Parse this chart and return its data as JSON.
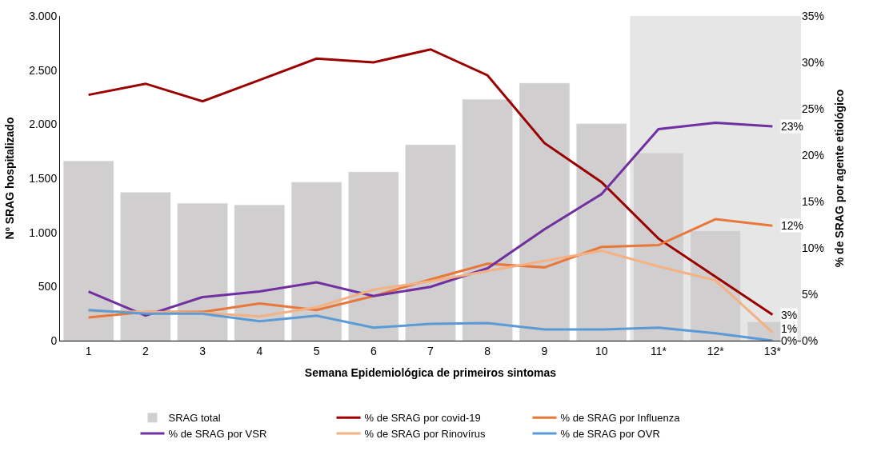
{
  "chart_data": {
    "type": "bar",
    "xlabel": "Semana Epidemiológica de primeiros sintomas",
    "ylabel": "Nº SRAG hospitalizado",
    "y2label": "% de SRAG por agente etiológico",
    "categories": [
      "1",
      "2",
      "3",
      "4",
      "5",
      "6",
      "7",
      "8",
      "9",
      "10",
      "11*",
      "12*",
      "13*"
    ],
    "series": [
      {
        "name": "SRAG total",
        "color": "#d0cecf",
        "values": [
          1660,
          1370,
          1270,
          1255,
          1465,
          1560,
          1810,
          2230,
          2380,
          2005,
          1735,
          1015,
          175
        ]
      },
      {
        "name": "% de SRAG por covid-19",
        "type": "line",
        "axis": "y2",
        "color": "#9b0000",
        "values": [
          26.5,
          27.7,
          25.8,
          28.1,
          30.4,
          30.0,
          31.4,
          28.6,
          21.3,
          17.1,
          11.0,
          6.9,
          2.8
        ],
        "value_labels": [
          null,
          null,
          null,
          null,
          null,
          null,
          null,
          null,
          null,
          null,
          null,
          null,
          "3%"
        ]
      },
      {
        "name": "% de SRAG por Influenza",
        "type": "line",
        "axis": "y2",
        "color": "#e8773a",
        "values": [
          2.5,
          3.1,
          3.1,
          4.0,
          3.3,
          4.8,
          6.6,
          8.3,
          7.9,
          10.1,
          10.3,
          13.1,
          12.4
        ],
        "value_labels": [
          null,
          null,
          null,
          null,
          null,
          null,
          null,
          null,
          null,
          null,
          null,
          null,
          "12%"
        ]
      },
      {
        "name": "% de SRAG por VSR",
        "type": "line",
        "axis": "y2",
        "color": "#7030a0",
        "values": [
          5.3,
          2.7,
          4.7,
          5.3,
          6.3,
          4.8,
          5.8,
          7.8,
          12.0,
          15.8,
          22.8,
          23.5,
          23.1
        ],
        "value_labels": [
          null,
          null,
          null,
          null,
          null,
          null,
          null,
          null,
          null,
          null,
          null,
          null,
          "23%"
        ]
      },
      {
        "name": "% de SRAG por Rinovírus",
        "type": "line",
        "axis": "y2",
        "color": "#f4b183",
        "values": [
          3.2,
          3.1,
          3.0,
          2.6,
          3.6,
          5.5,
          6.4,
          7.5,
          8.6,
          9.7,
          8.0,
          6.5,
          0.9
        ],
        "value_labels": [
          null,
          null,
          null,
          null,
          null,
          null,
          null,
          null,
          null,
          null,
          null,
          null,
          "1%"
        ]
      },
      {
        "name": "% de SRAG por OVR",
        "type": "line",
        "axis": "y2",
        "color": "#5b9bd5",
        "values": [
          3.3,
          2.9,
          2.9,
          2.1,
          2.7,
          1.4,
          1.8,
          1.9,
          1.2,
          1.2,
          1.4,
          0.8,
          0
        ],
        "value_labels": [
          null,
          null,
          null,
          null,
          null,
          null,
          null,
          null,
          null,
          null,
          null,
          null,
          "0%"
        ]
      }
    ],
    "ylim": [
      0,
      3000
    ],
    "yticks": [
      0,
      500,
      {
        "value": 1000,
        "label": "1.000"
      },
      {
        "value": 1500,
        "label": "1.500"
      },
      {
        "value": 2000,
        "label": "2.000"
      },
      {
        "value": 2500,
        "label": "2.500"
      },
      {
        "value": 3000,
        "label": "3.000"
      }
    ],
    "y2lim": [
      0,
      35
    ],
    "y2ticks": [
      {
        "value": 0,
        "label": "0%"
      },
      {
        "value": 5,
        "label": "5%"
      },
      {
        "value": 10,
        "label": "10%"
      },
      {
        "value": 15,
        "label": "15%"
      },
      {
        "value": 20,
        "label": "20%"
      },
      {
        "value": 25,
        "label": "25%"
      },
      {
        "value": 30,
        "label": "30%"
      },
      {
        "value": 35,
        "label": "35%"
      }
    ],
    "bands": [
      {
        "axis": "x",
        "from": "11*",
        "to": "13*",
        "color": "#e6e6e6"
      }
    ],
    "legend": "bottom",
    "grid": false,
    "marker": "none",
    "line_style": "solid"
  }
}
